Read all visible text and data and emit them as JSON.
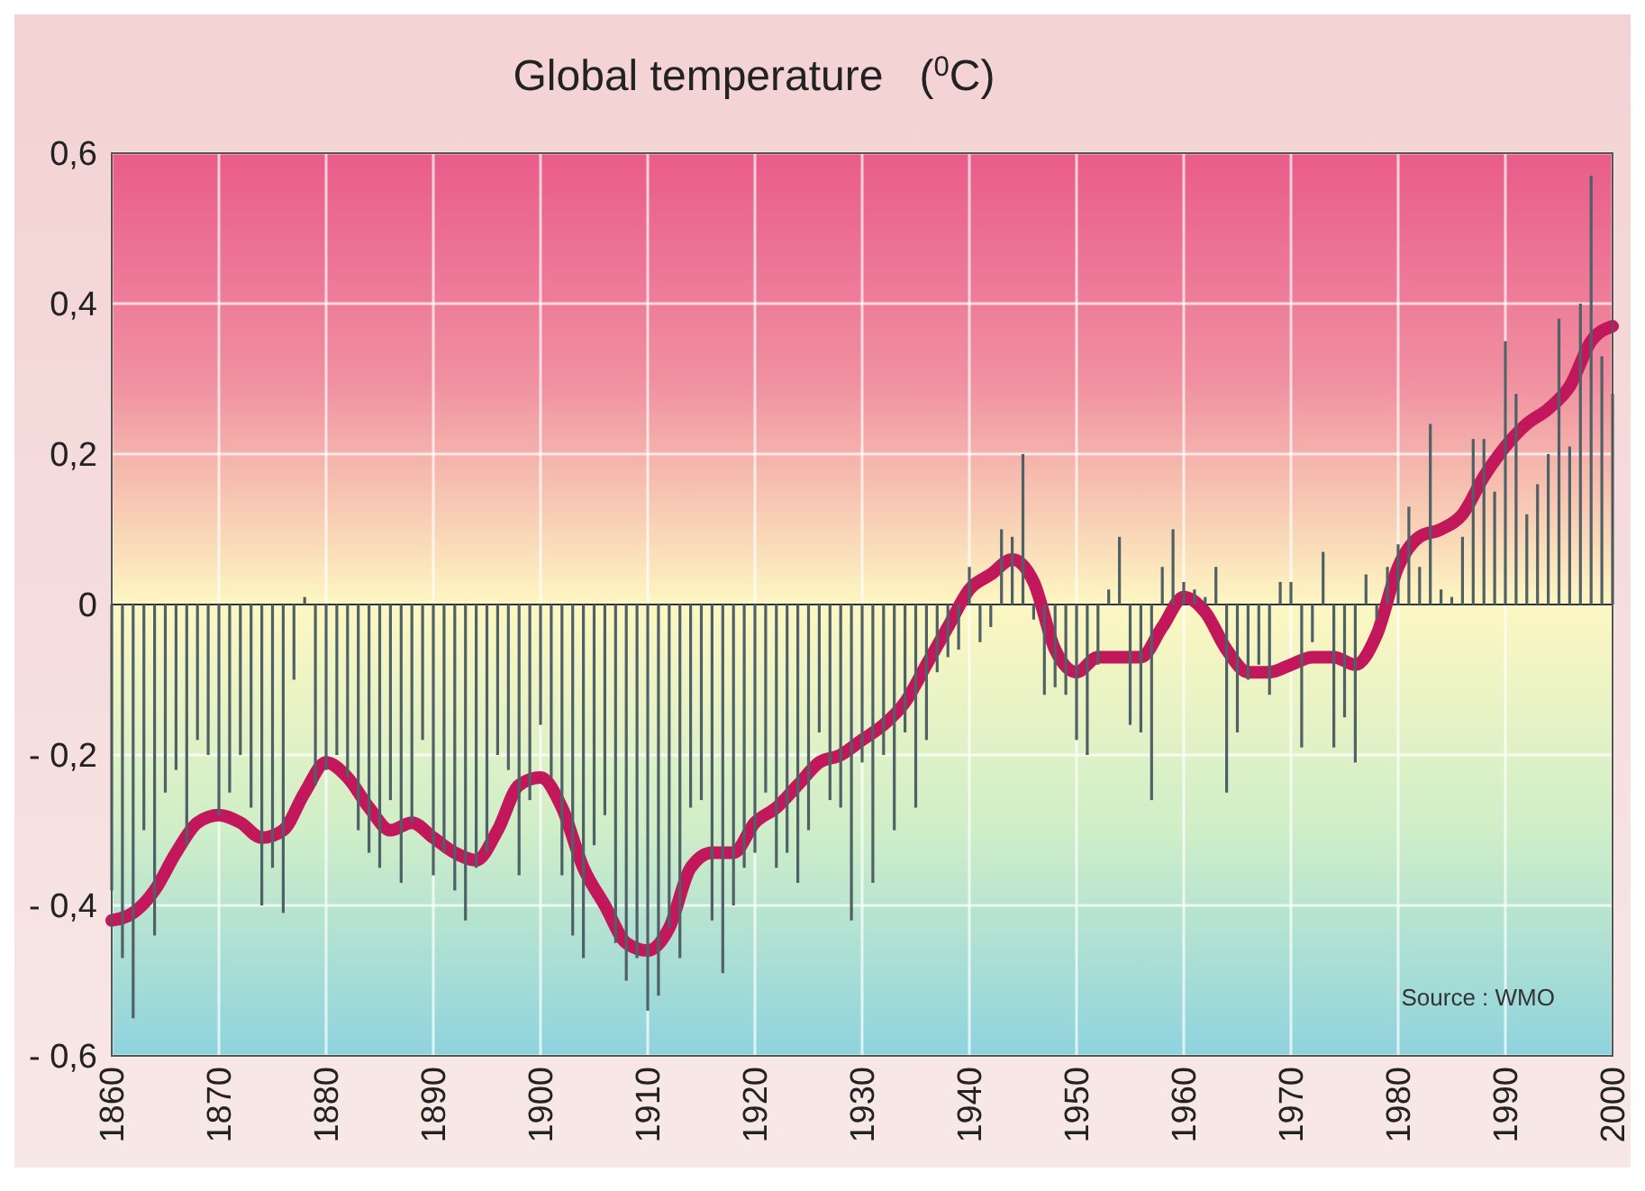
{
  "chart_data": {
    "type": "bar",
    "title": "Global temperature   ($^{0}$C)",
    "x": [
      1860,
      1861,
      1862,
      1863,
      1864,
      1865,
      1866,
      1867,
      1868,
      1869,
      1870,
      1871,
      1872,
      1873,
      1874,
      1875,
      1876,
      1877,
      1878,
      1879,
      1880,
      1881,
      1882,
      1883,
      1884,
      1885,
      1886,
      1887,
      1888,
      1889,
      1890,
      1891,
      1892,
      1893,
      1894,
      1895,
      1896,
      1897,
      1898,
      1899,
      1900,
      1901,
      1902,
      1903,
      1904,
      1905,
      1906,
      1907,
      1908,
      1909,
      1910,
      1911,
      1912,
      1913,
      1914,
      1915,
      1916,
      1917,
      1918,
      1919,
      1920,
      1921,
      1922,
      1923,
      1924,
      1925,
      1926,
      1927,
      1928,
      1929,
      1930,
      1931,
      1932,
      1933,
      1934,
      1935,
      1936,
      1937,
      1938,
      1939,
      1940,
      1941,
      1942,
      1943,
      1944,
      1945,
      1946,
      1947,
      1948,
      1949,
      1950,
      1951,
      1952,
      1953,
      1954,
      1955,
      1956,
      1957,
      1958,
      1959,
      1960,
      1961,
      1962,
      1963,
      1964,
      1965,
      1966,
      1967,
      1968,
      1969,
      1970,
      1971,
      1972,
      1973,
      1974,
      1975,
      1976,
      1977,
      1978,
      1979,
      1980,
      1981,
      1982,
      1983,
      1984,
      1985,
      1986,
      1987,
      1988,
      1989,
      1990,
      1991,
      1992,
      1993,
      1994,
      1995,
      1996,
      1997,
      1998,
      1999,
      2000
    ],
    "series": [
      {
        "color": "#4f6066",
        "values": [
          -0.38,
          -0.47,
          -0.55,
          -0.3,
          -0.44,
          -0.25,
          -0.22,
          -0.32,
          -0.18,
          -0.2,
          -0.28,
          -0.25,
          -0.2,
          -0.27,
          -0.4,
          -0.35,
          -0.41,
          -0.1,
          0.01,
          -0.24,
          -0.22,
          -0.2,
          -0.23,
          -0.3,
          -0.33,
          -0.35,
          -0.26,
          -0.37,
          -0.29,
          -0.18,
          -0.36,
          -0.33,
          -0.38,
          -0.42,
          -0.35,
          -0.33,
          -0.2,
          -0.22,
          -0.36,
          -0.26,
          -0.16,
          -0.23,
          -0.36,
          -0.44,
          -0.47,
          -0.32,
          -0.28,
          -0.45,
          -0.5,
          -0.47,
          -0.54,
          -0.52,
          -0.43,
          -0.47,
          -0.27,
          -0.26,
          -0.42,
          -0.49,
          -0.4,
          -0.35,
          -0.33,
          -0.25,
          -0.35,
          -0.33,
          -0.37,
          -0.3,
          -0.17,
          -0.26,
          -0.27,
          -0.42,
          -0.21,
          -0.37,
          -0.2,
          -0.3,
          -0.17,
          -0.27,
          -0.18,
          -0.09,
          -0.07,
          -0.06,
          0.05,
          -0.05,
          -0.03,
          0.1,
          0.09,
          0.2,
          -0.02,
          -0.12,
          -0.11,
          -0.12,
          -0.18,
          -0.2,
          -0.08,
          0.02,
          0.09,
          -0.16,
          -0.17,
          -0.26,
          0.05,
          0.1,
          0.03,
          0.02,
          0.01,
          0.05,
          -0.25,
          -0.17,
          -0.1,
          -0.08,
          -0.12,
          0.03,
          0.03,
          -0.19,
          -0.05,
          0.07,
          -0.19,
          -0.15,
          -0.21,
          0.04,
          -0.02,
          0.05,
          0.08,
          0.13,
          0.05,
          0.24,
          0.02,
          0.01,
          0.09,
          0.22,
          0.22,
          0.15,
          0.35,
          0.28,
          0.12,
          0.16,
          0.2,
          0.38,
          0.21,
          0.4,
          0.57,
          0.33,
          0.28
        ]
      },
      {
        "type": "line",
        "color": "#c2185b",
        "x": [
          1860,
          1862,
          1864,
          1866,
          1868,
          1870,
          1872,
          1874,
          1876,
          1878,
          1880,
          1882,
          1884,
          1886,
          1888,
          1890,
          1892,
          1894,
          1896,
          1898,
          1900,
          1902,
          1904,
          1906,
          1908,
          1910,
          1912,
          1914,
          1916,
          1918,
          1920,
          1922,
          1924,
          1926,
          1928,
          1930,
          1932,
          1934,
          1936,
          1938,
          1940,
          1942,
          1944,
          1946,
          1948,
          1950,
          1952,
          1954,
          1956,
          1958,
          1960,
          1962,
          1964,
          1966,
          1968,
          1970,
          1972,
          1974,
          1976,
          1978,
          1980,
          1982,
          1984,
          1986,
          1988,
          1990,
          1992,
          1994,
          1996,
          1998,
          2000
        ],
        "values": [
          -0.42,
          -0.41,
          -0.38,
          -0.33,
          -0.29,
          -0.28,
          -0.29,
          -0.31,
          -0.3,
          -0.25,
          -0.21,
          -0.23,
          -0.27,
          -0.3,
          -0.29,
          -0.31,
          -0.33,
          -0.34,
          -0.3,
          -0.24,
          -0.23,
          -0.27,
          -0.35,
          -0.4,
          -0.45,
          -0.46,
          -0.43,
          -0.35,
          -0.33,
          -0.33,
          -0.29,
          -0.27,
          -0.24,
          -0.21,
          -0.2,
          -0.18,
          -0.16,
          -0.13,
          -0.08,
          -0.03,
          0.02,
          0.04,
          0.06,
          0.03,
          -0.06,
          -0.09,
          -0.07,
          -0.07,
          -0.07,
          -0.03,
          0.01,
          -0.01,
          -0.06,
          -0.09,
          -0.09,
          -0.08,
          -0.07,
          -0.07,
          -0.08,
          -0.04,
          0.05,
          0.09,
          0.1,
          0.12,
          0.17,
          0.21,
          0.24,
          0.26,
          0.29,
          0.35,
          0.37
        ]
      }
    ],
    "xlim": [
      1860,
      2000
    ],
    "xticks": [
      1860,
      1870,
      1880,
      1890,
      1900,
      1910,
      1920,
      1930,
      1940,
      1950,
      1960,
      1970,
      1980,
      1990,
      2000
    ],
    "ylim": [
      -0.6,
      0.6
    ],
    "yticks": [
      {
        "value": -0.6,
        "label": "- 0,6"
      },
      {
        "value": -0.4,
        "label": "- 0,4"
      },
      {
        "value": -0.2,
        "label": "- 0,2"
      },
      0,
      {
        "value": 0.2,
        "label": "0,2"
      },
      {
        "value": 0.4,
        "label": "0,4"
      },
      {
        "value": 0.6,
        "label": "0,6"
      }
    ],
    "grid": true,
    "annotations": [
      "Source : WMO"
    ]
  }
}
